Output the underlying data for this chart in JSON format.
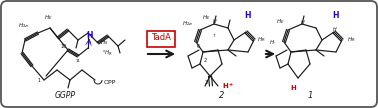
{
  "background_color": "#ffffff",
  "border_color": "#444444",
  "fig_width": 3.78,
  "fig_height": 1.08,
  "dpi": 100,
  "black": "#1a1a1a",
  "blue": "#2200cc",
  "red": "#cc0000",
  "gray": "#777777",
  "label_GGPP": "GGPP",
  "label_2": "2",
  "label_1": "1",
  "tada_label": "TadA"
}
